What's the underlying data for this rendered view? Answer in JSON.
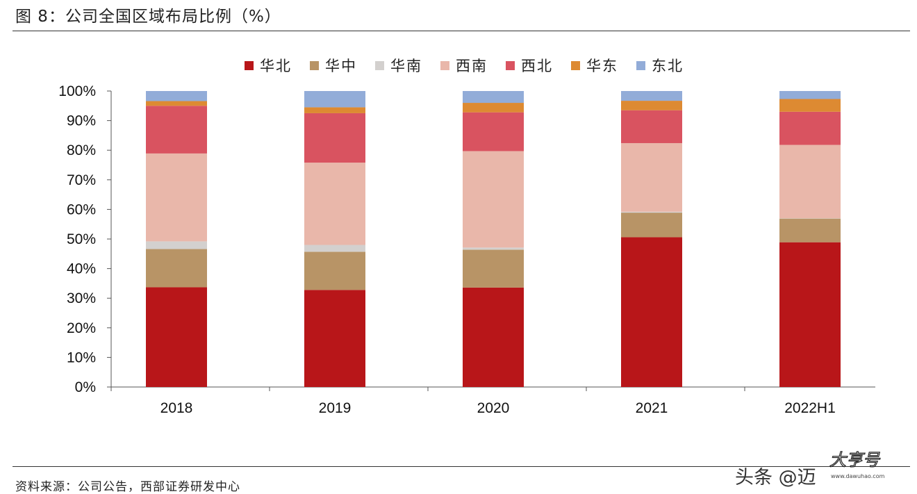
{
  "figure": {
    "title": "图 8：公司全国区域布局比例（%）",
    "source": "资料来源：公司公告，西部证券研发中心"
  },
  "watermark": {
    "text": "头条 @迈",
    "logo_text": "大亨号",
    "logo_subtext": "www.dawuhao.com"
  },
  "chart_data": {
    "type": "bar",
    "stacked": true,
    "categories": [
      "2018",
      "2019",
      "2020",
      "2021",
      "2022H1"
    ],
    "series": [
      {
        "name": "华北",
        "color": "#b81619",
        "values": [
          33.7,
          32.8,
          33.6,
          50.6,
          48.9
        ]
      },
      {
        "name": "华中",
        "color": "#b89466",
        "values": [
          12.9,
          12.9,
          12.8,
          8.3,
          8.0
        ]
      },
      {
        "name": "华南",
        "color": "#d3d0ce",
        "values": [
          2.6,
          2.3,
          0.7,
          0.3,
          0.1
        ]
      },
      {
        "name": "西南",
        "color": "#e9b7aa",
        "values": [
          29.7,
          27.8,
          32.6,
          23.2,
          24.8
        ]
      },
      {
        "name": "西北",
        "color": "#d95360",
        "values": [
          16.1,
          16.7,
          13.1,
          11.1,
          11.2
        ]
      },
      {
        "name": "华东",
        "color": "#dd8a32",
        "values": [
          1.6,
          2.0,
          3.2,
          3.2,
          4.3
        ]
      },
      {
        "name": "东北",
        "color": "#92acd8",
        "values": [
          3.4,
          5.5,
          4.0,
          3.3,
          2.7
        ]
      }
    ],
    "y_ticks": [
      "0%",
      "10%",
      "20%",
      "30%",
      "40%",
      "50%",
      "60%",
      "70%",
      "80%",
      "90%",
      "100%"
    ],
    "ylim": [
      0,
      100
    ],
    "grid": false,
    "legend_position": "top"
  }
}
